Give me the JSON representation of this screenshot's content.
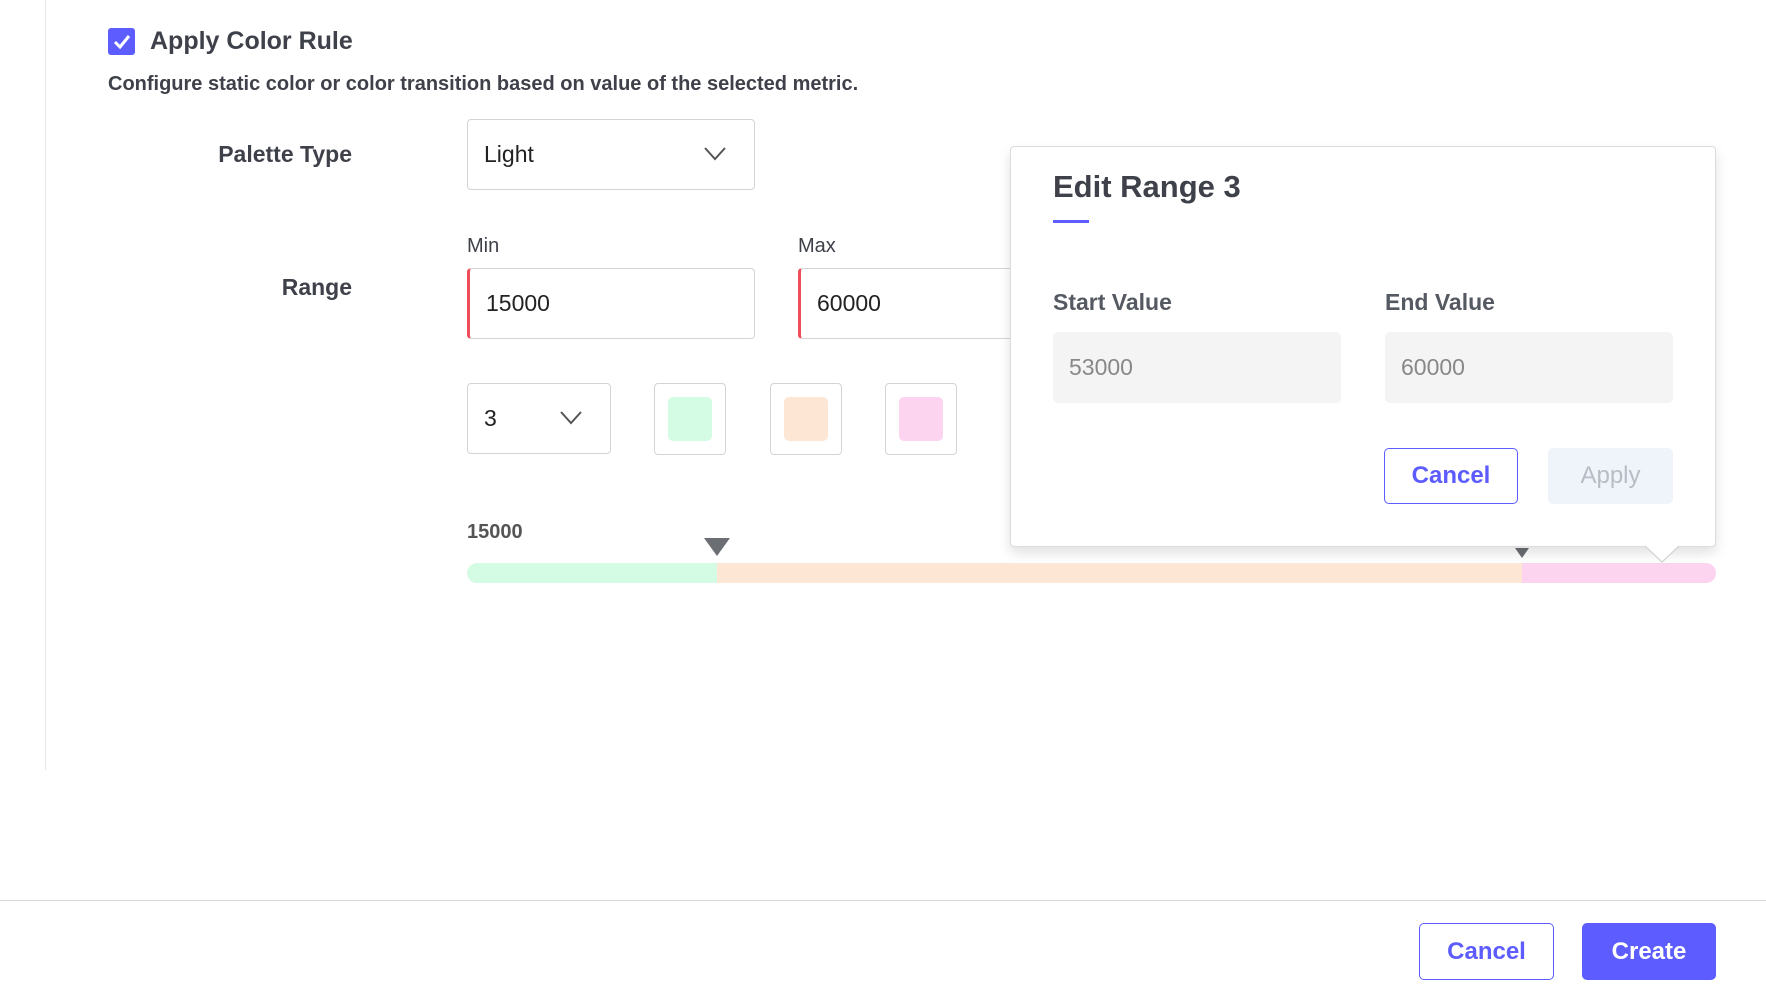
{
  "color_rule": {
    "checked": true,
    "title": "Apply Color Rule",
    "description": "Configure static color or color transition based on value of the selected metric."
  },
  "palette": {
    "label": "Palette Type",
    "value": "Light"
  },
  "range": {
    "label": "Range",
    "min_label": "Min",
    "min_value": "15000",
    "max_label": "Max",
    "max_value": "60000",
    "count": "3",
    "colors": [
      "#d4fbe3",
      "#fde6d4",
      "#fcd4ef"
    ],
    "start_label": "15000",
    "segments": [
      {
        "from": 15000,
        "to": 24000,
        "color": "#d4fbe3"
      },
      {
        "from": 24000,
        "to": 53000,
        "color": "#fde6d4"
      },
      {
        "from": 53000,
        "to": 60000,
        "color": "#fcd4ef"
      }
    ]
  },
  "popover": {
    "title": "Edit Range 3",
    "start_label": "Start Value",
    "start_value": "53000",
    "end_label": "End Value",
    "end_value": "60000",
    "cancel": "Cancel",
    "apply": "Apply"
  },
  "footer": {
    "cancel": "Cancel",
    "create": "Create"
  },
  "accent": "#5c5cff"
}
